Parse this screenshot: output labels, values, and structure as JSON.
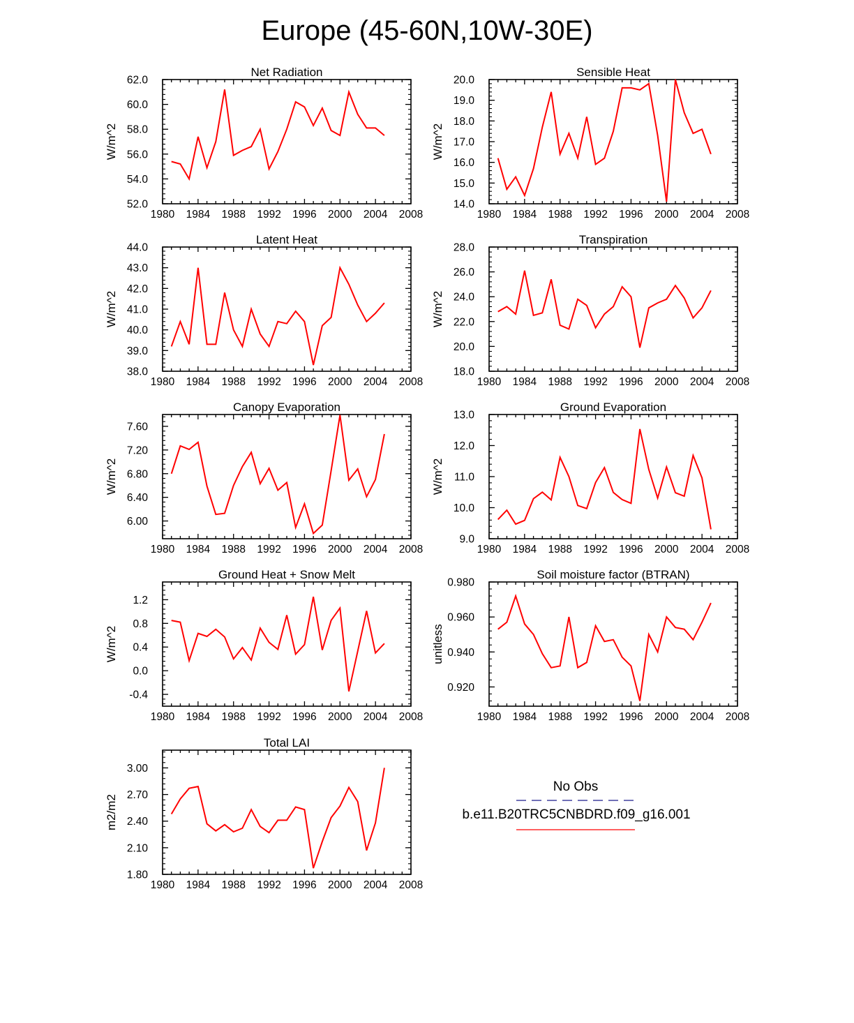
{
  "figure": {
    "title": "Europe (45-60N,10W-30E)",
    "line_color": "#ff0000",
    "obs_color": "#1a1a8c"
  },
  "legend": {
    "obs_label": "No Obs",
    "model_label": "b.e11.B20TRC5CNBDRD.f09_g16.001"
  },
  "chart_data": [
    {
      "type": "line",
      "title": "Net Radiation",
      "ylabel": "W/m^2",
      "xlim": [
        1980,
        2008
      ],
      "ylim": [
        52,
        62
      ],
      "xticks": [
        "1980",
        "1984",
        "1988",
        "1992",
        "1996",
        "2000",
        "2004",
        "2008"
      ],
      "yticks": [
        "52.0",
        "54.0",
        "56.0",
        "58.0",
        "60.0",
        "62.0"
      ],
      "x": [
        1981,
        1982,
        1983,
        1984,
        1985,
        1986,
        1987,
        1988,
        1989,
        1990,
        1991,
        1992,
        1993,
        1994,
        1995,
        1996,
        1997,
        1998,
        1999,
        2000,
        2001,
        2002,
        2003,
        2004,
        2005
      ],
      "values": [
        55.4,
        55.2,
        54.0,
        57.4,
        54.9,
        57.0,
        61.2,
        55.9,
        56.3,
        56.6,
        58.0,
        54.8,
        56.2,
        58.0,
        60.2,
        59.8,
        58.3,
        59.7,
        57.9,
        57.5,
        61.0,
        59.2,
        58.1,
        58.1,
        57.5
      ]
    },
    {
      "type": "line",
      "title": "Sensible Heat",
      "ylabel": "W/m^2",
      "xlim": [
        1980,
        2008
      ],
      "ylim": [
        14,
        20
      ],
      "xticks": [
        "1980",
        "1984",
        "1988",
        "1992",
        "1996",
        "2000",
        "2004",
        "2008"
      ],
      "yticks": [
        "14.0",
        "15.0",
        "16.0",
        "17.0",
        "18.0",
        "19.0",
        "20.0"
      ],
      "x": [
        1981,
        1982,
        1983,
        1984,
        1985,
        1986,
        1987,
        1988,
        1989,
        1990,
        1991,
        1992,
        1993,
        1994,
        1995,
        1996,
        1997,
        1998,
        1999,
        2000,
        2001,
        2002,
        2003,
        2004,
        2005
      ],
      "values": [
        16.2,
        14.7,
        15.3,
        14.4,
        15.7,
        17.7,
        19.4,
        16.4,
        17.4,
        16.2,
        18.2,
        15.9,
        16.2,
        17.5,
        19.6,
        19.6,
        19.5,
        19.8,
        17.3,
        14.1,
        20.0,
        18.4,
        17.4,
        17.6,
        16.4
      ]
    },
    {
      "type": "line",
      "title": "Latent Heat",
      "ylabel": "W/m^2",
      "xlim": [
        1980,
        2008
      ],
      "ylim": [
        38,
        44
      ],
      "xticks": [
        "1980",
        "1984",
        "1988",
        "1992",
        "1996",
        "2000",
        "2004",
        "2008"
      ],
      "yticks": [
        "38.0",
        "39.0",
        "40.0",
        "41.0",
        "42.0",
        "43.0",
        "44.0"
      ],
      "x": [
        1981,
        1982,
        1983,
        1984,
        1985,
        1986,
        1987,
        1988,
        1989,
        1990,
        1991,
        1992,
        1993,
        1994,
        1995,
        1996,
        1997,
        1998,
        1999,
        2000,
        2001,
        2002,
        2003,
        2004,
        2005
      ],
      "values": [
        39.2,
        40.4,
        39.3,
        43.0,
        39.3,
        39.3,
        41.8,
        40.0,
        39.2,
        41.0,
        39.8,
        39.2,
        40.4,
        40.3,
        40.9,
        40.4,
        38.3,
        40.2,
        40.6,
        43.0,
        42.2,
        41.2,
        40.4,
        40.8,
        41.3
      ]
    },
    {
      "type": "line",
      "title": "Transpiration",
      "ylabel": "W/m^2",
      "xlim": [
        1980,
        2008
      ],
      "ylim": [
        18,
        28
      ],
      "xticks": [
        "1980",
        "1984",
        "1988",
        "1992",
        "1996",
        "2000",
        "2004",
        "2008"
      ],
      "yticks": [
        "18.0",
        "20.0",
        "22.0",
        "24.0",
        "26.0",
        "28.0"
      ],
      "x": [
        1981,
        1982,
        1983,
        1984,
        1985,
        1986,
        1987,
        1988,
        1989,
        1990,
        1991,
        1992,
        1993,
        1994,
        1995,
        1996,
        1997,
        1998,
        1999,
        2000,
        2001,
        2002,
        2003,
        2004,
        2005
      ],
      "values": [
        22.8,
        23.2,
        22.6,
        26.1,
        22.5,
        22.7,
        25.4,
        21.7,
        21.4,
        23.8,
        23.3,
        21.5,
        22.6,
        23.2,
        24.8,
        24.0,
        19.9,
        23.1,
        23.5,
        23.8,
        24.9,
        23.9,
        22.3,
        23.1,
        24.5
      ]
    },
    {
      "type": "line",
      "title": "Canopy Evaporation",
      "ylabel": "W/m^2",
      "xlim": [
        1980,
        2008
      ],
      "ylim": [
        5.7,
        7.8
      ],
      "xticks": [
        "1980",
        "1984",
        "1988",
        "1992",
        "1996",
        "2000",
        "2004",
        "2008"
      ],
      "yticks": [
        "6.00",
        "6.40",
        "6.80",
        "7.20",
        "7.60"
      ],
      "x": [
        1981,
        1982,
        1983,
        1984,
        1985,
        1986,
        1987,
        1988,
        1989,
        1990,
        1991,
        1992,
        1993,
        1994,
        1995,
        1996,
        1997,
        1998,
        1999,
        2000,
        2001,
        2002,
        2003,
        2004,
        2005
      ],
      "values": [
        6.8,
        7.27,
        7.21,
        7.33,
        6.59,
        6.11,
        6.13,
        6.6,
        6.92,
        7.16,
        6.63,
        6.89,
        6.52,
        6.65,
        5.89,
        6.29,
        5.79,
        5.93,
        6.85,
        7.79,
        6.69,
        6.88,
        6.41,
        6.7,
        7.47
      ]
    },
    {
      "type": "line",
      "title": "Ground Evaporation",
      "ylabel": "W/m^2",
      "xlim": [
        1980,
        2008
      ],
      "ylim": [
        9,
        13
      ],
      "xticks": [
        "1980",
        "1984",
        "1988",
        "1992",
        "1996",
        "2000",
        "2004",
        "2008"
      ],
      "yticks": [
        "9.0",
        "10.0",
        "11.0",
        "12.0",
        "13.0"
      ],
      "x": [
        1981,
        1982,
        1983,
        1984,
        1985,
        1986,
        1987,
        1988,
        1989,
        1990,
        1991,
        1992,
        1993,
        1994,
        1995,
        1996,
        1997,
        1998,
        1999,
        2000,
        2001,
        2002,
        2003,
        2004,
        2005
      ],
      "values": [
        9.62,
        9.92,
        9.47,
        9.59,
        10.29,
        10.5,
        10.25,
        11.62,
        11.0,
        10.07,
        9.97,
        10.81,
        11.29,
        10.49,
        10.26,
        10.14,
        12.53,
        11.23,
        10.31,
        11.31,
        10.48,
        10.37,
        11.68,
        10.96,
        9.3
      ]
    },
    {
      "type": "line",
      "title": "Ground Heat + Snow Melt",
      "ylabel": "W/m^2",
      "xlim": [
        1980,
        2008
      ],
      "ylim": [
        -0.6,
        1.5
      ],
      "xticks": [
        "1980",
        "1984",
        "1988",
        "1992",
        "1996",
        "2000",
        "2004",
        "2008"
      ],
      "yticks": [
        "-0.4",
        "0.0",
        "0.4",
        "0.8",
        "1.2"
      ],
      "x": [
        1981,
        1982,
        1983,
        1984,
        1985,
        1986,
        1987,
        1988,
        1989,
        1990,
        1991,
        1992,
        1993,
        1994,
        1995,
        1996,
        1997,
        1998,
        1999,
        2000,
        2001,
        2002,
        2003,
        2004,
        2005
      ],
      "values": [
        0.85,
        0.82,
        0.17,
        0.63,
        0.58,
        0.7,
        0.57,
        0.2,
        0.39,
        0.18,
        0.72,
        0.48,
        0.36,
        0.94,
        0.28,
        0.44,
        1.25,
        0.35,
        0.85,
        1.06,
        -0.35,
        0.33,
        1.01,
        0.3,
        0.46
      ]
    },
    {
      "type": "line",
      "title": "Soil moisture factor (BTRAN)",
      "ylabel": "unitless",
      "xlim": [
        1980,
        2008
      ],
      "ylim": [
        0.909,
        0.98
      ],
      "xticks": [
        "1980",
        "1984",
        "1988",
        "1992",
        "1996",
        "2000",
        "2004",
        "2008"
      ],
      "yticks": [
        "0.920",
        "0.940",
        "0.960",
        "0.980"
      ],
      "x": [
        1981,
        1982,
        1983,
        1984,
        1985,
        1986,
        1987,
        1988,
        1989,
        1990,
        1991,
        1992,
        1993,
        1994,
        1995,
        1996,
        1997,
        1998,
        1999,
        2000,
        2001,
        2002,
        2003,
        2004,
        2005
      ],
      "values": [
        0.953,
        0.957,
        0.972,
        0.956,
        0.95,
        0.939,
        0.931,
        0.932,
        0.96,
        0.931,
        0.934,
        0.955,
        0.946,
        0.947,
        0.937,
        0.932,
        0.912,
        0.95,
        0.94,
        0.96,
        0.954,
        0.953,
        0.947,
        0.957,
        0.968
      ]
    },
    {
      "type": "line",
      "title": "Total LAI",
      "ylabel": "m2/m2",
      "xlim": [
        1980,
        2008
      ],
      "ylim": [
        1.8,
        3.2
      ],
      "xticks": [
        "1980",
        "1984",
        "1988",
        "1992",
        "1996",
        "2000",
        "2004",
        "2008"
      ],
      "yticks": [
        "1.80",
        "2.10",
        "2.40",
        "2.70",
        "3.00"
      ],
      "x": [
        1981,
        1982,
        1983,
        1984,
        1985,
        1986,
        1987,
        1988,
        1989,
        1990,
        1991,
        1992,
        1993,
        1994,
        1995,
        1996,
        1997,
        1998,
        1999,
        2000,
        2001,
        2002,
        2003,
        2004,
        2005
      ],
      "values": [
        2.48,
        2.65,
        2.77,
        2.79,
        2.37,
        2.29,
        2.36,
        2.28,
        2.32,
        2.53,
        2.34,
        2.27,
        2.41,
        2.41,
        2.56,
        2.53,
        1.87,
        2.17,
        2.44,
        2.57,
        2.78,
        2.62,
        2.07,
        2.38,
        3.0
      ]
    }
  ]
}
